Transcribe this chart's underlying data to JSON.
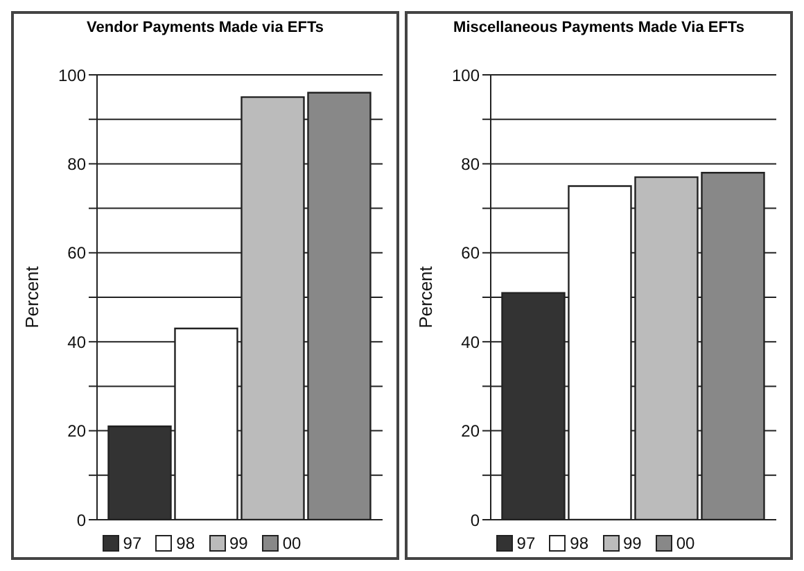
{
  "chart_data": [
    {
      "type": "bar",
      "title": "Vendor Payments Made via EFTs",
      "ylabel": "Percent",
      "categories": [
        null
      ],
      "series": [
        {
          "name": "97",
          "color": "#333333",
          "values": [
            21
          ]
        },
        {
          "name": "98",
          "color": "#ffffff",
          "values": [
            43
          ]
        },
        {
          "name": "99",
          "color": "#bbbbbb",
          "values": [
            95
          ]
        },
        {
          "name": "00",
          "color": "#888888",
          "values": [
            96
          ]
        }
      ],
      "ylim": [
        0,
        100
      ],
      "yticks": [
        0,
        {
          "value": 10,
          "label": null
        },
        20,
        {
          "value": 30,
          "label": null
        },
        40,
        {
          "value": 50,
          "label": null
        },
        60,
        {
          "value": 70,
          "label": null
        },
        80,
        {
          "value": 90,
          "label": null
        },
        100
      ],
      "grid": "y",
      "legend": "bottom"
    },
    {
      "type": "bar",
      "title": "Miscellaneous Payments Made Via EFTs",
      "ylabel": "Percent",
      "categories": [
        null
      ],
      "series": [
        {
          "name": "97",
          "color": "#333333",
          "values": [
            51
          ]
        },
        {
          "name": "98",
          "color": "#ffffff",
          "values": [
            75
          ]
        },
        {
          "name": "99",
          "color": "#bbbbbb",
          "values": [
            77
          ]
        },
        {
          "name": "00",
          "color": "#888888",
          "values": [
            78
          ]
        }
      ],
      "ylim": [
        0,
        100
      ],
      "yticks": [
        0,
        {
          "value": 10,
          "label": null
        },
        20,
        {
          "value": 30,
          "label": null
        },
        40,
        {
          "value": 50,
          "label": null
        },
        60,
        {
          "value": 70,
          "label": null
        },
        80,
        {
          "value": 90,
          "label": null
        },
        100
      ],
      "grid": "y",
      "legend": "bottom"
    }
  ]
}
